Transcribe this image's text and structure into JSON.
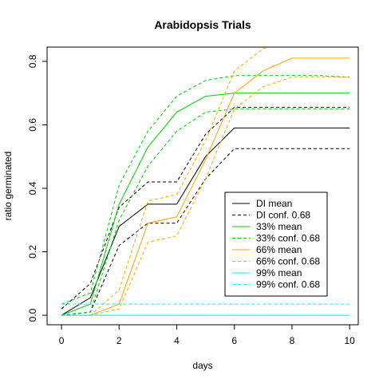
{
  "chart_data": {
    "type": "line",
    "title": "Arabidopsis Trials",
    "xlabel": "days",
    "ylabel": "ratio germinated",
    "xlim": [
      -0.5,
      10.3
    ],
    "ylim": [
      -0.03,
      0.845
    ],
    "xticks": [
      0,
      2,
      4,
      6,
      8,
      10
    ],
    "xtick_labels": [
      "0",
      "2",
      "4",
      "6",
      "8",
      "10"
    ],
    "yticks": [
      0.0,
      0.2,
      0.4,
      0.6,
      0.8
    ],
    "ytick_labels": [
      "0.0",
      "0.2",
      "0.4",
      "0.6",
      "0.8"
    ],
    "grid": false,
    "legend_position": "right-center",
    "x": [
      0,
      1,
      2,
      3,
      4,
      5,
      6,
      7,
      8,
      9,
      10
    ],
    "series": [
      {
        "name": "DI mean",
        "color": "#000000",
        "dash": "solid",
        "values": [
          0.0,
          0.055,
          0.28,
          0.35,
          0.35,
          0.5,
          0.59,
          0.59,
          0.59,
          0.59,
          0.59
        ]
      },
      {
        "name": "DI conf. 0.68",
        "color": "#000000",
        "dash": "dashed",
        "values": [
          0.0,
          0.01,
          0.22,
          0.29,
          0.29,
          0.43,
          0.525,
          0.525,
          0.525,
          0.525,
          0.525
        ]
      },
      {
        "name": "",
        "color": "#000000",
        "dash": "dashed",
        "values": [
          0.02,
          0.1,
          0.34,
          0.42,
          0.42,
          0.57,
          0.655,
          0.655,
          0.655,
          0.655,
          0.655
        ]
      },
      {
        "name": "33% mean",
        "color": "#00cc00",
        "dash": "solid",
        "values": [
          0.0,
          0.035,
          0.35,
          0.53,
          0.64,
          0.69,
          0.7,
          0.7,
          0.7,
          0.7,
          0.7
        ]
      },
      {
        "name": "33% conf. 0.68",
        "color": "#00cc00",
        "dash": "dashed",
        "values": [
          0.0,
          0.01,
          0.3,
          0.47,
          0.58,
          0.64,
          0.65,
          0.65,
          0.65,
          0.65,
          0.65
        ]
      },
      {
        "name": "",
        "color": "#00cc00",
        "dash": "dashed",
        "values": [
          0.035,
          0.07,
          0.41,
          0.58,
          0.69,
          0.74,
          0.755,
          0.755,
          0.755,
          0.755,
          0.75
        ]
      },
      {
        "name": "66% mean",
        "color": "#ffa500",
        "dash": "solid",
        "values": [
          0.0,
          0.0,
          0.035,
          0.29,
          0.31,
          0.49,
          0.7,
          0.77,
          0.81,
          0.81,
          0.81
        ]
      },
      {
        "name": "66% conf. 0.68",
        "color": "#ffa500",
        "dash": "dashed",
        "values": [
          0.0,
          0.0,
          0.02,
          0.23,
          0.25,
          0.43,
          0.65,
          0.72,
          0.75,
          0.75,
          0.75
        ]
      },
      {
        "name": "",
        "color": "#ffa500",
        "dash": "dashed",
        "values": [
          0.0,
          0.0,
          0.08,
          0.36,
          0.38,
          0.55,
          0.77,
          0.84,
          0.87,
          0.87,
          0.87
        ]
      },
      {
        "name": "99% mean",
        "color": "#00ffff",
        "dash": "solid",
        "values": [
          0.0,
          0.0,
          0.0,
          0.0,
          0.0,
          0.0,
          0.0,
          0.0,
          0.0,
          0.0,
          0.0
        ]
      },
      {
        "name": "99% conf. 0.68",
        "color": "#00ffff",
        "dash": "dashed",
        "values": [
          0.0,
          0.0,
          0.0,
          0.0,
          0.0,
          0.0,
          0.0,
          0.0,
          0.0,
          0.0,
          0.0
        ]
      },
      {
        "name": "",
        "color": "#00ffff",
        "dash": "dashed",
        "values": [
          0.035,
          0.035,
          0.035,
          0.035,
          0.035,
          0.035,
          0.035,
          0.035,
          0.035,
          0.035,
          0.035
        ]
      }
    ],
    "legend": [
      {
        "label": "DI mean",
        "color": "#000000",
        "dash": "solid"
      },
      {
        "label": "DI conf. 0.68",
        "color": "#000000",
        "dash": "dashed"
      },
      {
        "label": "33% mean",
        "color": "#00cc00",
        "dash": "solid"
      },
      {
        "label": "33% conf. 0.68",
        "color": "#00cc00",
        "dash": "dashed"
      },
      {
        "label": "66% mean",
        "color": "#ffa500",
        "dash": "solid"
      },
      {
        "label": "66% conf. 0.68",
        "color": "#ffa500",
        "dash": "dashed"
      },
      {
        "label": "99% mean",
        "color": "#00ffff",
        "dash": "solid"
      },
      {
        "label": "99% conf. 0.68",
        "color": "#00ffff",
        "dash": "dashed"
      }
    ]
  }
}
